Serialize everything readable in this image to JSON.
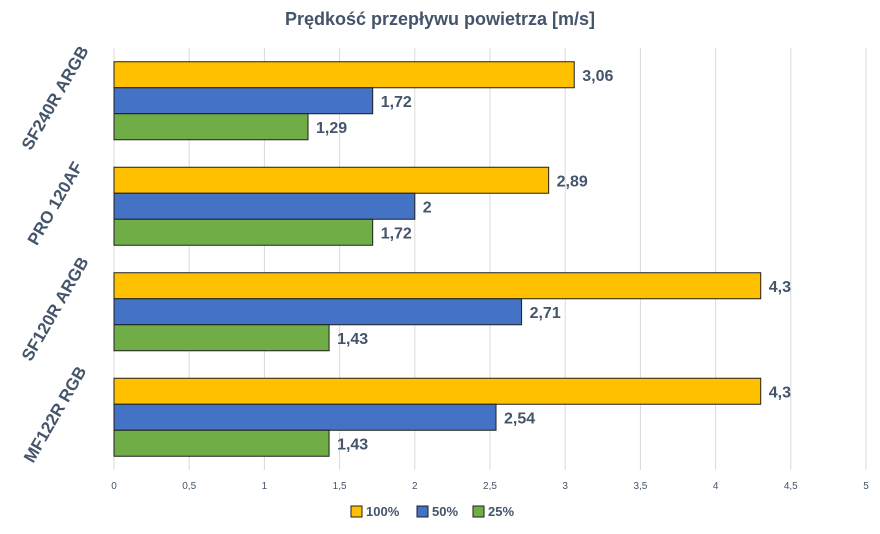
{
  "chart_data": {
    "type": "bar",
    "orientation": "horizontal",
    "title": "Prędkość przepływu powietrza [m/s]",
    "categories": [
      "SF240R ARGB",
      "PRO 120AF",
      "SF120R ARGB",
      "MF122R RGB"
    ],
    "series": [
      {
        "name": "100%",
        "values": [
          3.06,
          2.89,
          4.3,
          4.3
        ],
        "labels": [
          "3,06",
          "2,89",
          "4,3",
          "4,3"
        ],
        "color": "#ffc000"
      },
      {
        "name": "50%",
        "values": [
          1.72,
          2,
          2.71,
          2.54
        ],
        "labels": [
          "1,72",
          "2",
          "2,71",
          "2,54"
        ],
        "color": "#4472c4"
      },
      {
        "name": "25%",
        "values": [
          1.29,
          1.72,
          1.43,
          1.43
        ],
        "labels": [
          "1,29",
          "1,72",
          "1,43",
          "1,43"
        ],
        "color": "#70ad47"
      }
    ],
    "xlim": [
      0,
      5
    ],
    "x_ticks": [
      "0",
      "0,5",
      "1",
      "1,5",
      "2",
      "2,5",
      "3",
      "3,5",
      "4",
      "4,5",
      "5"
    ],
    "grid": true,
    "legend": "bottom"
  }
}
